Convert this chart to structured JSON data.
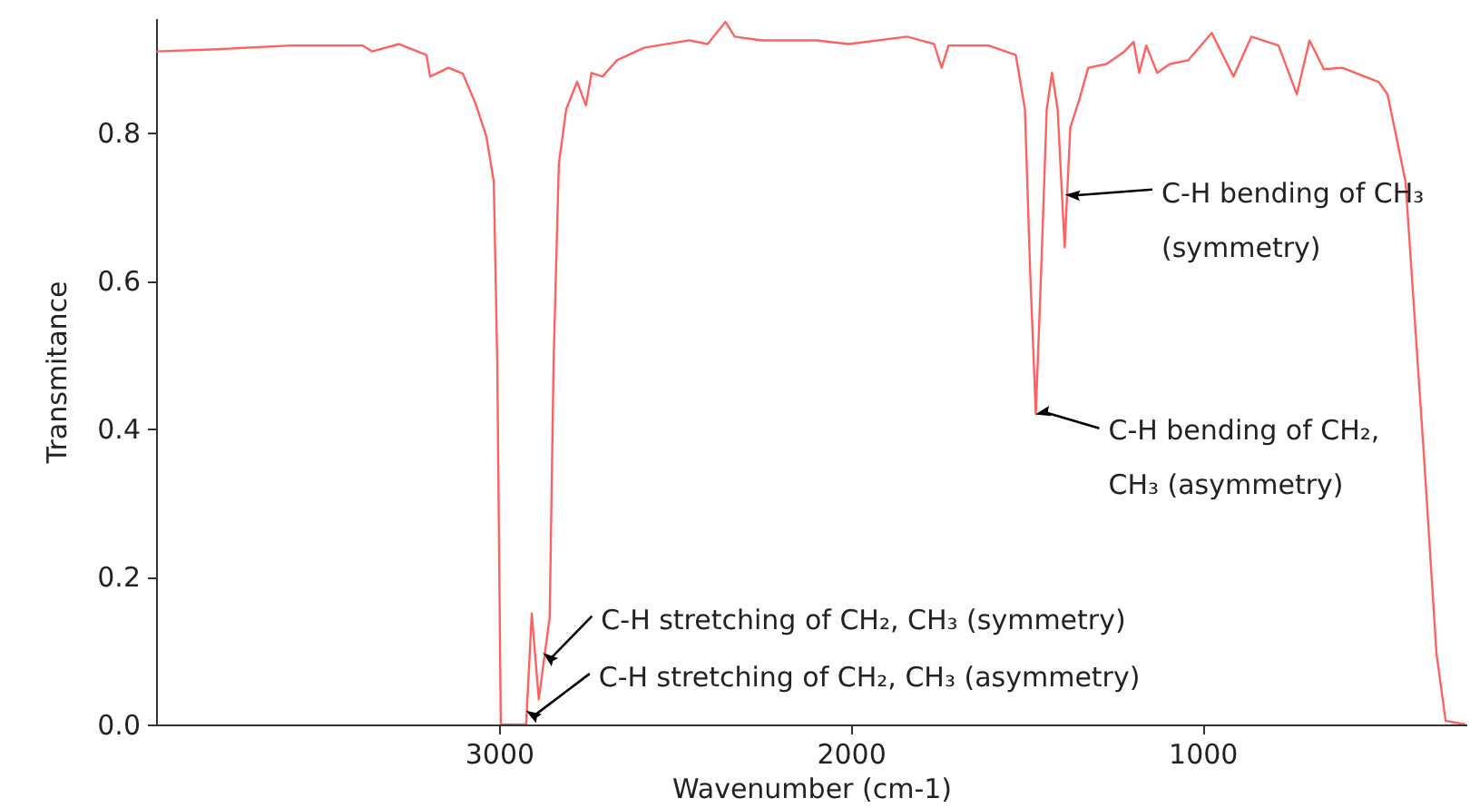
{
  "chart_data": {
    "type": "line",
    "xlabel": "Wavenumber (cm-1)",
    "ylabel": "Transmitance",
    "xlim": [
      3975,
      250
    ],
    "xticks": [
      3000,
      2000,
      1000
    ],
    "ylim": [
      0,
      0.955
    ],
    "yticks": [
      {
        "value": 0,
        "label": "0.0"
      },
      0.2,
      0.4,
      0.6,
      0.8
    ],
    "grid": false,
    "marker": "none",
    "line_style": "solid",
    "x": [
      3974,
      3799,
      3593,
      3387,
      3361,
      3284,
      3206,
      3196,
      3144,
      3103,
      3067,
      3036,
      3015,
      3005,
      2995,
      2923,
      2907,
      2887,
      2870,
      2856,
      2845,
      2830,
      2809,
      2778,
      2753,
      2737,
      2706,
      2665,
      2588,
      2459,
      2407,
      2356,
      2330,
      2253,
      2098,
      2005,
      1840,
      1763,
      1742,
      1722,
      1608,
      1531,
      1505,
      1490,
      1474,
      1459,
      1443,
      1428,
      1412,
      1392,
      1385,
      1376,
      1351,
      1325,
      1273,
      1222,
      1196,
      1180,
      1160,
      1129,
      1093,
      1041,
      974,
      912,
      861,
      784,
      732,
      696,
      655,
      603,
      500,
      474,
      423,
      371,
      335,
      309,
      253
    ],
    "series": [
      {
        "color": "#ff6060",
        "values": [
          0.91,
          0.913,
          0.918,
          0.918,
          0.91,
          0.92,
          0.905,
          0.876,
          0.888,
          0.88,
          0.84,
          0.795,
          0.734,
          0.488,
          0,
          0,
          0.15,
          0.034,
          0.095,
          0.145,
          0.488,
          0.758,
          0.832,
          0.869,
          0.837,
          0.881,
          0.876,
          0.898,
          0.915,
          0.925,
          0.92,
          0.95,
          0.93,
          0.925,
          0.925,
          0.92,
          0.93,
          0.92,
          0.888,
          0.918,
          0.918,
          0.905,
          0.832,
          0.611,
          0.42,
          0.611,
          0.832,
          0.881,
          0.832,
          0.645,
          0.716,
          0.807,
          0.844,
          0.888,
          0.893,
          0.91,
          0.923,
          0.881,
          0.918,
          0.881,
          0.893,
          0.898,
          0.935,
          0.876,
          0.93,
          0.918,
          0.852,
          0.925,
          0.886,
          0.888,
          0.869,
          0.852,
          0.734,
          0.366,
          0.096,
          0.005,
          0
        ]
      }
    ],
    "annotations": [
      {
        "text": "C-H stretching of CH₂, CH₃ (symmetry)",
        "x": 2870,
        "y": 0.095
      },
      {
        "text": "C-H stretching of CH₂, CH₃ (asymmetry)",
        "x": 2918,
        "y": 0.017
      },
      {
        "text": "C-H bending of CH₂,\nCH₃ (asymmetry)",
        "x": 1469,
        "y": 0.42
      },
      {
        "text": "C-H bending of CH₃\n(symmetry)",
        "x": 1385,
        "y": 0.716
      }
    ]
  }
}
